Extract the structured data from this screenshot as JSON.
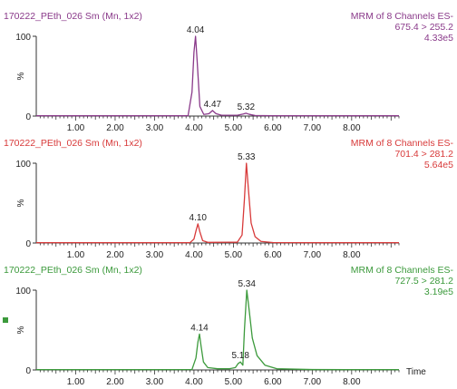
{
  "x_axis": {
    "ticks": [
      "1.00",
      "2.00",
      "3.00",
      "4.00",
      "5.00",
      "6.00",
      "7.00",
      "8.00"
    ],
    "xlim": [
      0.0,
      9.2
    ],
    "label": "Time"
  },
  "chart_data": [
    {
      "type": "line",
      "color": "#8a3a8a",
      "sample_label": "170222_PEth_026 Sm (Mn, 1x2)",
      "title": "MRM of 8 Channels ES-",
      "transition": "675.4 > 255.2",
      "max_intensity": "4.33e5",
      "ylabel": "%",
      "ylim": [
        0,
        100
      ],
      "y_ticks": [
        "0",
        "100"
      ],
      "x": [
        0.0,
        1.0,
        2.0,
        3.0,
        3.85,
        3.95,
        4.0,
        4.04,
        4.08,
        4.15,
        4.25,
        4.38,
        4.47,
        4.56,
        4.7,
        5.1,
        5.25,
        5.32,
        5.4,
        5.55,
        6.0,
        7.0,
        8.0,
        9.2
      ],
      "y": [
        0.4,
        0.4,
        0.4,
        0.4,
        0.5,
        30,
        80,
        100,
        70,
        12,
        2,
        3,
        7,
        3,
        1,
        1,
        2.5,
        3.5,
        2.2,
        0.7,
        0.4,
        0.4,
        0.4,
        0.4
      ],
      "peak_labels": [
        {
          "x": 4.04,
          "y": 100,
          "text": "4.04"
        },
        {
          "x": 4.47,
          "y": 7,
          "text": "4.47"
        },
        {
          "x": 5.32,
          "y": 3.5,
          "text": "5.32"
        }
      ]
    },
    {
      "type": "line",
      "color": "#d83a3a",
      "sample_label": "170222_PEth_026 Sm (Mn, 1x2)",
      "title": "MRM of 8 Channels ES-",
      "transition": "701.4 > 281.2",
      "max_intensity": "5.64e5",
      "ylabel": "%",
      "ylim": [
        0,
        100
      ],
      "y_ticks": [
        "0",
        "100"
      ],
      "x": [
        0.0,
        1.0,
        2.0,
        3.0,
        3.9,
        4.0,
        4.05,
        4.1,
        4.15,
        4.22,
        4.35,
        5.1,
        5.22,
        5.28,
        5.33,
        5.38,
        5.45,
        5.55,
        5.7,
        6.0,
        7.0,
        8.0,
        9.2
      ],
      "y": [
        0.4,
        0.4,
        0.4,
        0.4,
        0.5,
        5,
        15,
        24,
        14,
        3,
        0.8,
        1,
        10,
        55,
        100,
        68,
        25,
        8,
        2,
        0.6,
        0.4,
        0.4,
        0.4
      ],
      "peak_labels": [
        {
          "x": 4.1,
          "y": 24,
          "text": "4.10"
        },
        {
          "x": 5.33,
          "y": 100,
          "text": "5.33"
        }
      ]
    },
    {
      "type": "line",
      "color": "#3c9a3c",
      "sample_label": "170222_PEth_026 Sm (Mn, 1x2)",
      "title": "MRM of 8 Channels ES-",
      "transition": "727.5 > 281.2",
      "max_intensity": "3.19e5",
      "ylabel": "%",
      "ylim": [
        0,
        100
      ],
      "y_ticks": [
        "0",
        "100"
      ],
      "x": [
        0.0,
        1.0,
        2.0,
        3.0,
        3.95,
        4.05,
        4.1,
        4.14,
        4.18,
        4.24,
        4.35,
        4.6,
        4.9,
        5.05,
        5.12,
        5.18,
        5.24,
        5.28,
        5.34,
        5.4,
        5.48,
        5.6,
        5.8,
        6.1,
        7.0,
        8.0,
        9.2
      ],
      "y": [
        0.4,
        0.4,
        0.4,
        0.4,
        0.6,
        15,
        35,
        45,
        30,
        10,
        3,
        1.5,
        1.5,
        3,
        8,
        10,
        6,
        50,
        100,
        75,
        40,
        18,
        6,
        1.5,
        0.5,
        0.4,
        0.4
      ],
      "peak_labels": [
        {
          "x": 4.14,
          "y": 45,
          "text": "4.14"
        },
        {
          "x": 5.18,
          "y": 10,
          "text": "5.18"
        },
        {
          "x": 5.34,
          "y": 100,
          "text": "5.34"
        }
      ]
    }
  ]
}
